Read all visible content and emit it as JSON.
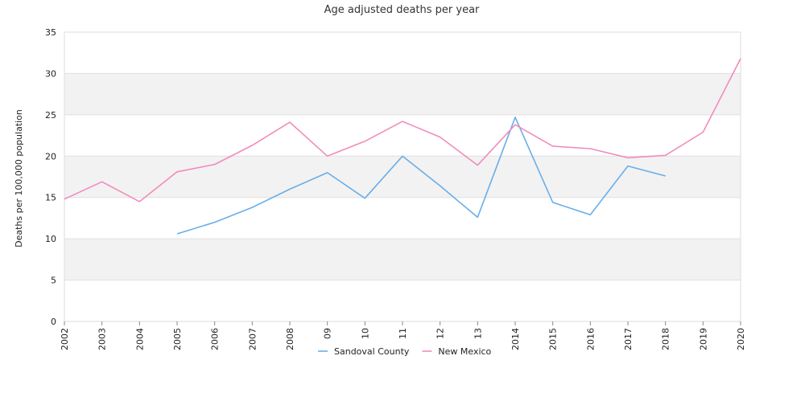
{
  "chart_data": {
    "type": "line",
    "title": "Age adjusted deaths per year",
    "xlabel": "",
    "ylabel": "Deaths per 100,000 population",
    "categories": [
      "2002",
      "2003",
      "2004",
      "2005",
      "2006",
      "2007",
      "2008",
      "09",
      "10",
      "11",
      "12",
      "13",
      "2014",
      "2015",
      "2016",
      "2017",
      "2018",
      "2019",
      "2020"
    ],
    "ylim": [
      0,
      35
    ],
    "yticks": [
      0,
      5,
      10,
      15,
      20,
      25,
      30,
      35
    ],
    "grid": "alternating horizontal bands",
    "legend_position": "bottom-center",
    "series": [
      {
        "name": "Sandoval County",
        "color": "#6aaee8",
        "values": [
          null,
          null,
          null,
          10.6,
          12.0,
          13.8,
          16.0,
          18.0,
          14.9,
          20.0,
          16.4,
          12.6,
          24.7,
          14.4,
          12.9,
          18.8,
          17.6,
          null,
          null
        ]
      },
      {
        "name": "New Mexico",
        "color": "#f08cbc",
        "values": [
          14.8,
          16.9,
          14.5,
          18.1,
          19.0,
          21.3,
          24.1,
          20.0,
          21.8,
          24.2,
          22.3,
          18.9,
          23.8,
          21.2,
          20.9,
          19.8,
          20.1,
          22.9,
          31.8
        ]
      }
    ]
  }
}
